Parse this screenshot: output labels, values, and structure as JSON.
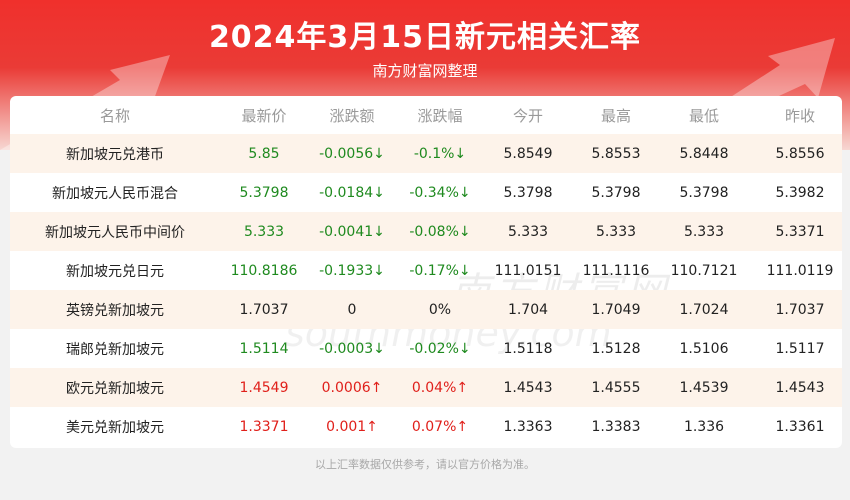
{
  "header": {
    "title": "2024年3月15日新元相关汇率",
    "subtitle": "南方财富网整理"
  },
  "table": {
    "columns": [
      "名称",
      "最新价",
      "涨跌额",
      "涨跌幅",
      "今开",
      "最高",
      "最低",
      "昨收"
    ],
    "rows": [
      {
        "trend": "down",
        "name": "新加坡元兑港币",
        "last": "5.85",
        "chg": "-0.0056↓",
        "pct": "-0.1%↓",
        "open": "5.8549",
        "high": "5.8553",
        "low": "5.8448",
        "prev": "5.8556"
      },
      {
        "trend": "down",
        "name": "新加坡元人民币混合",
        "last": "5.3798",
        "chg": "-0.0184↓",
        "pct": "-0.34%↓",
        "open": "5.3798",
        "high": "5.3798",
        "low": "5.3798",
        "prev": "5.3982"
      },
      {
        "trend": "down",
        "name": "新加坡元人民币中间价",
        "last": "5.333",
        "chg": "-0.0041↓",
        "pct": "-0.08%↓",
        "open": "5.333",
        "high": "5.333",
        "low": "5.333",
        "prev": "5.3371"
      },
      {
        "trend": "down",
        "name": "新加坡元兑日元",
        "last": "110.8186",
        "chg": "-0.1933↓",
        "pct": "-0.17%↓",
        "open": "111.0151",
        "high": "111.1116",
        "low": "110.7121",
        "prev": "111.0119"
      },
      {
        "trend": "flat",
        "name": "英镑兑新加坡元",
        "last": "1.7037",
        "chg": "0",
        "pct": "0%",
        "open": "1.704",
        "high": "1.7049",
        "low": "1.7024",
        "prev": "1.7037"
      },
      {
        "trend": "down",
        "name": "瑞郎兑新加坡元",
        "last": "1.5114",
        "chg": "-0.0003↓",
        "pct": "-0.02%↓",
        "open": "1.5118",
        "high": "1.5128",
        "low": "1.5106",
        "prev": "1.5117"
      },
      {
        "trend": "up",
        "name": "欧元兑新加坡元",
        "last": "1.4549",
        "chg": "0.0006↑",
        "pct": "0.04%↑",
        "open": "1.4543",
        "high": "1.4555",
        "low": "1.4539",
        "prev": "1.4543"
      },
      {
        "trend": "up",
        "name": "美元兑新加坡元",
        "last": "1.3371",
        "chg": "0.001↑",
        "pct": "0.07%↑",
        "open": "1.3363",
        "high": "1.3383",
        "low": "1.336",
        "prev": "1.3361"
      }
    ]
  },
  "watermark": {
    "cn": "南方财富网",
    "en": "southmoney.com"
  },
  "footer": {
    "note": "以上汇率数据仅供参考，请以官方价格为准。"
  },
  "colors": {
    "brand_red": "#ea3b36",
    "up": "#e0201b",
    "down": "#1f8a1f",
    "stripe": "#fdf3ea"
  }
}
